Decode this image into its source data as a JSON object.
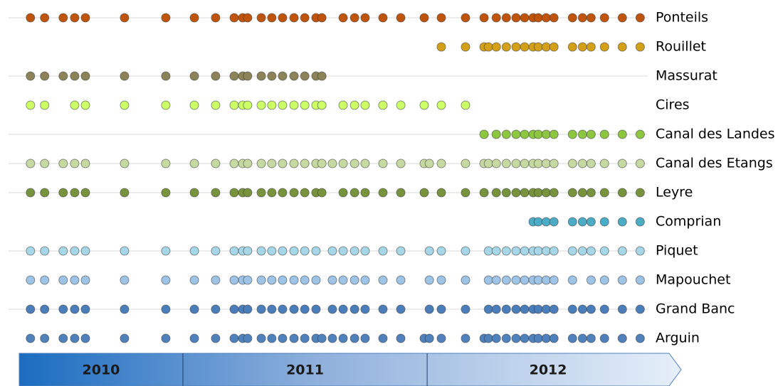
{
  "chart_data": {
    "type": "dot-timeline",
    "xlim": [
      2010.33,
      2013.04
    ],
    "periods": [
      {
        "label": "2010",
        "start": 2010.33,
        "end": 2011
      },
      {
        "label": "2011",
        "start": 2011,
        "end": 2012
      },
      {
        "label": "2012",
        "start": 2012,
        "end": 2013.04
      }
    ],
    "series": [
      {
        "name": "Ponteils",
        "color": "#c0540a",
        "line": true,
        "x": [
          2010.376,
          2010.434,
          2010.51,
          2010.557,
          2010.601,
          2010.761,
          2010.93,
          2011.047,
          2011.134,
          2011.21,
          2011.245,
          2011.265,
          2011.321,
          2011.364,
          2011.408,
          2011.455,
          2011.499,
          2011.545,
          2011.569,
          2011.656,
          2011.703,
          2011.746,
          2011.819,
          2011.892,
          2011.988,
          2012.058,
          2012.157,
          2012.233,
          2012.283,
          2012.324,
          2012.364,
          2012.399,
          2012.434,
          2012.455,
          2012.487,
          2012.519,
          2012.595,
          2012.636,
          2012.671,
          2012.726,
          2012.799,
          2012.872
        ]
      },
      {
        "name": "Rouillet",
        "color": "#d4a017",
        "line": false,
        "x": [
          2012.058,
          2012.157,
          2012.233,
          2012.251,
          2012.283,
          2012.324,
          2012.364,
          2012.399,
          2012.434,
          2012.455,
          2012.487,
          2012.519,
          2012.595,
          2012.636,
          2012.671,
          2012.726,
          2012.799,
          2012.872
        ]
      },
      {
        "name": "Massurat",
        "color": "#8c8458",
        "line": true,
        "x": [
          2010.376,
          2010.434,
          2010.51,
          2010.557,
          2010.601,
          2010.761,
          2010.93,
          2011.047,
          2011.134,
          2011.21,
          2011.245,
          2011.265,
          2011.321,
          2011.364,
          2011.408,
          2011.455,
          2011.499,
          2011.545,
          2011.569
        ]
      },
      {
        "name": "Cires",
        "color": "#ccff66",
        "line": false,
        "x": [
          2010.376,
          2010.434,
          2010.557,
          2010.601,
          2010.761,
          2010.93,
          2011.047,
          2011.134,
          2011.21,
          2011.245,
          2011.265,
          2011.321,
          2011.364,
          2011.408,
          2011.455,
          2011.499,
          2011.545,
          2011.569,
          2011.656,
          2011.703,
          2011.746,
          2011.819,
          2011.892,
          2011.988,
          2012.058,
          2012.157
        ]
      },
      {
        "name": "Canal des Landes",
        "color": "#8dc63f",
        "line": true,
        "x": [
          2012.233,
          2012.283,
          2012.324,
          2012.364,
          2012.399,
          2012.434,
          2012.455,
          2012.487,
          2012.519,
          2012.595,
          2012.636,
          2012.671,
          2012.726,
          2012.799,
          2012.872
        ]
      },
      {
        "name": "Canal des Etangs",
        "color": "#c5d9a0",
        "line": true,
        "x": [
          2010.376,
          2010.434,
          2010.51,
          2010.557,
          2010.601,
          2010.761,
          2010.93,
          2011.047,
          2011.134,
          2011.21,
          2011.245,
          2011.265,
          2011.321,
          2011.364,
          2011.408,
          2011.455,
          2011.499,
          2011.545,
          2011.569,
          2011.612,
          2011.656,
          2011.703,
          2011.746,
          2011.819,
          2011.892,
          2011.988,
          2012.009,
          2012.058,
          2012.157,
          2012.233,
          2012.251,
          2012.283,
          2012.324,
          2012.364,
          2012.399,
          2012.434,
          2012.455,
          2012.487,
          2012.519,
          2012.595,
          2012.636,
          2012.671,
          2012.726,
          2012.799,
          2012.872
        ]
      },
      {
        "name": "Leyre",
        "color": "#77933c",
        "line": true,
        "x": [
          2010.376,
          2010.434,
          2010.51,
          2010.557,
          2010.601,
          2010.761,
          2010.93,
          2011.047,
          2011.134,
          2011.21,
          2011.245,
          2011.265,
          2011.321,
          2011.364,
          2011.408,
          2011.455,
          2011.499,
          2011.545,
          2011.569,
          2011.656,
          2011.703,
          2011.746,
          2011.819,
          2011.892,
          2011.988,
          2012.058,
          2012.157,
          2012.233,
          2012.283,
          2012.324,
          2012.364,
          2012.399,
          2012.434,
          2012.455,
          2012.487,
          2012.519,
          2012.595,
          2012.636,
          2012.671,
          2012.726,
          2012.799,
          2012.872
        ]
      },
      {
        "name": "Comprian",
        "color": "#4bacc6",
        "line": false,
        "x": [
          2012.434,
          2012.455,
          2012.487,
          2012.519,
          2012.595,
          2012.636,
          2012.671,
          2012.726,
          2012.799,
          2012.872
        ]
      },
      {
        "name": "Piquet",
        "color": "#a5d7e8",
        "line": true,
        "x": [
          2010.376,
          2010.434,
          2010.51,
          2010.557,
          2010.601,
          2010.761,
          2010.93,
          2011.047,
          2011.134,
          2011.21,
          2011.245,
          2011.265,
          2011.321,
          2011.364,
          2011.408,
          2011.455,
          2011.499,
          2011.545,
          2011.612,
          2011.656,
          2011.703,
          2011.746,
          2011.819,
          2011.892,
          2012.009,
          2012.058,
          2012.157,
          2012.251,
          2012.283,
          2012.324,
          2012.364,
          2012.399,
          2012.434,
          2012.455,
          2012.487,
          2012.519,
          2012.595,
          2012.636,
          2012.671,
          2012.726,
          2012.799,
          2012.872
        ]
      },
      {
        "name": "Mapouchet",
        "color": "#9dc3e6",
        "line": false,
        "x": [
          2010.376,
          2010.434,
          2010.51,
          2010.557,
          2010.601,
          2010.761,
          2010.93,
          2011.047,
          2011.134,
          2011.21,
          2011.245,
          2011.265,
          2011.321,
          2011.364,
          2011.408,
          2011.455,
          2011.499,
          2011.545,
          2011.612,
          2011.656,
          2011.703,
          2011.746,
          2011.819,
          2011.892,
          2012.009,
          2012.058,
          2012.157,
          2012.251,
          2012.283,
          2012.324,
          2012.364,
          2012.399,
          2012.434,
          2012.455,
          2012.487,
          2012.519,
          2012.595,
          2012.671,
          2012.726,
          2012.799,
          2012.872
        ]
      },
      {
        "name": "Grand Banc",
        "color": "#4a7ebb",
        "line": true,
        "x": [
          2010.376,
          2010.434,
          2010.51,
          2010.557,
          2010.601,
          2010.761,
          2010.93,
          2011.047,
          2011.134,
          2011.21,
          2011.245,
          2011.265,
          2011.321,
          2011.364,
          2011.408,
          2011.455,
          2011.499,
          2011.545,
          2011.612,
          2011.656,
          2011.703,
          2011.746,
          2011.819,
          2011.892,
          2012.009,
          2012.058,
          2012.157,
          2012.251,
          2012.283,
          2012.324,
          2012.364,
          2012.399,
          2012.434,
          2012.455,
          2012.487,
          2012.519,
          2012.595,
          2012.636,
          2012.671,
          2012.726,
          2012.799,
          2012.872
        ]
      },
      {
        "name": "Arguin",
        "color": "#4f81bd",
        "line": false,
        "x": [
          2010.376,
          2010.434,
          2010.51,
          2010.557,
          2010.601,
          2010.761,
          2010.93,
          2011.047,
          2011.134,
          2011.21,
          2011.245,
          2011.265,
          2011.321,
          2011.364,
          2011.408,
          2011.455,
          2011.499,
          2011.545,
          2011.569,
          2011.612,
          2011.656,
          2011.703,
          2011.746,
          2011.819,
          2011.892,
          2011.988,
          2012.009,
          2012.058,
          2012.157,
          2012.233,
          2012.251,
          2012.283,
          2012.324,
          2012.364,
          2012.399,
          2012.434,
          2012.455,
          2012.487,
          2012.519,
          2012.595,
          2012.636,
          2012.671,
          2012.726,
          2012.799,
          2012.872
        ]
      }
    ]
  }
}
